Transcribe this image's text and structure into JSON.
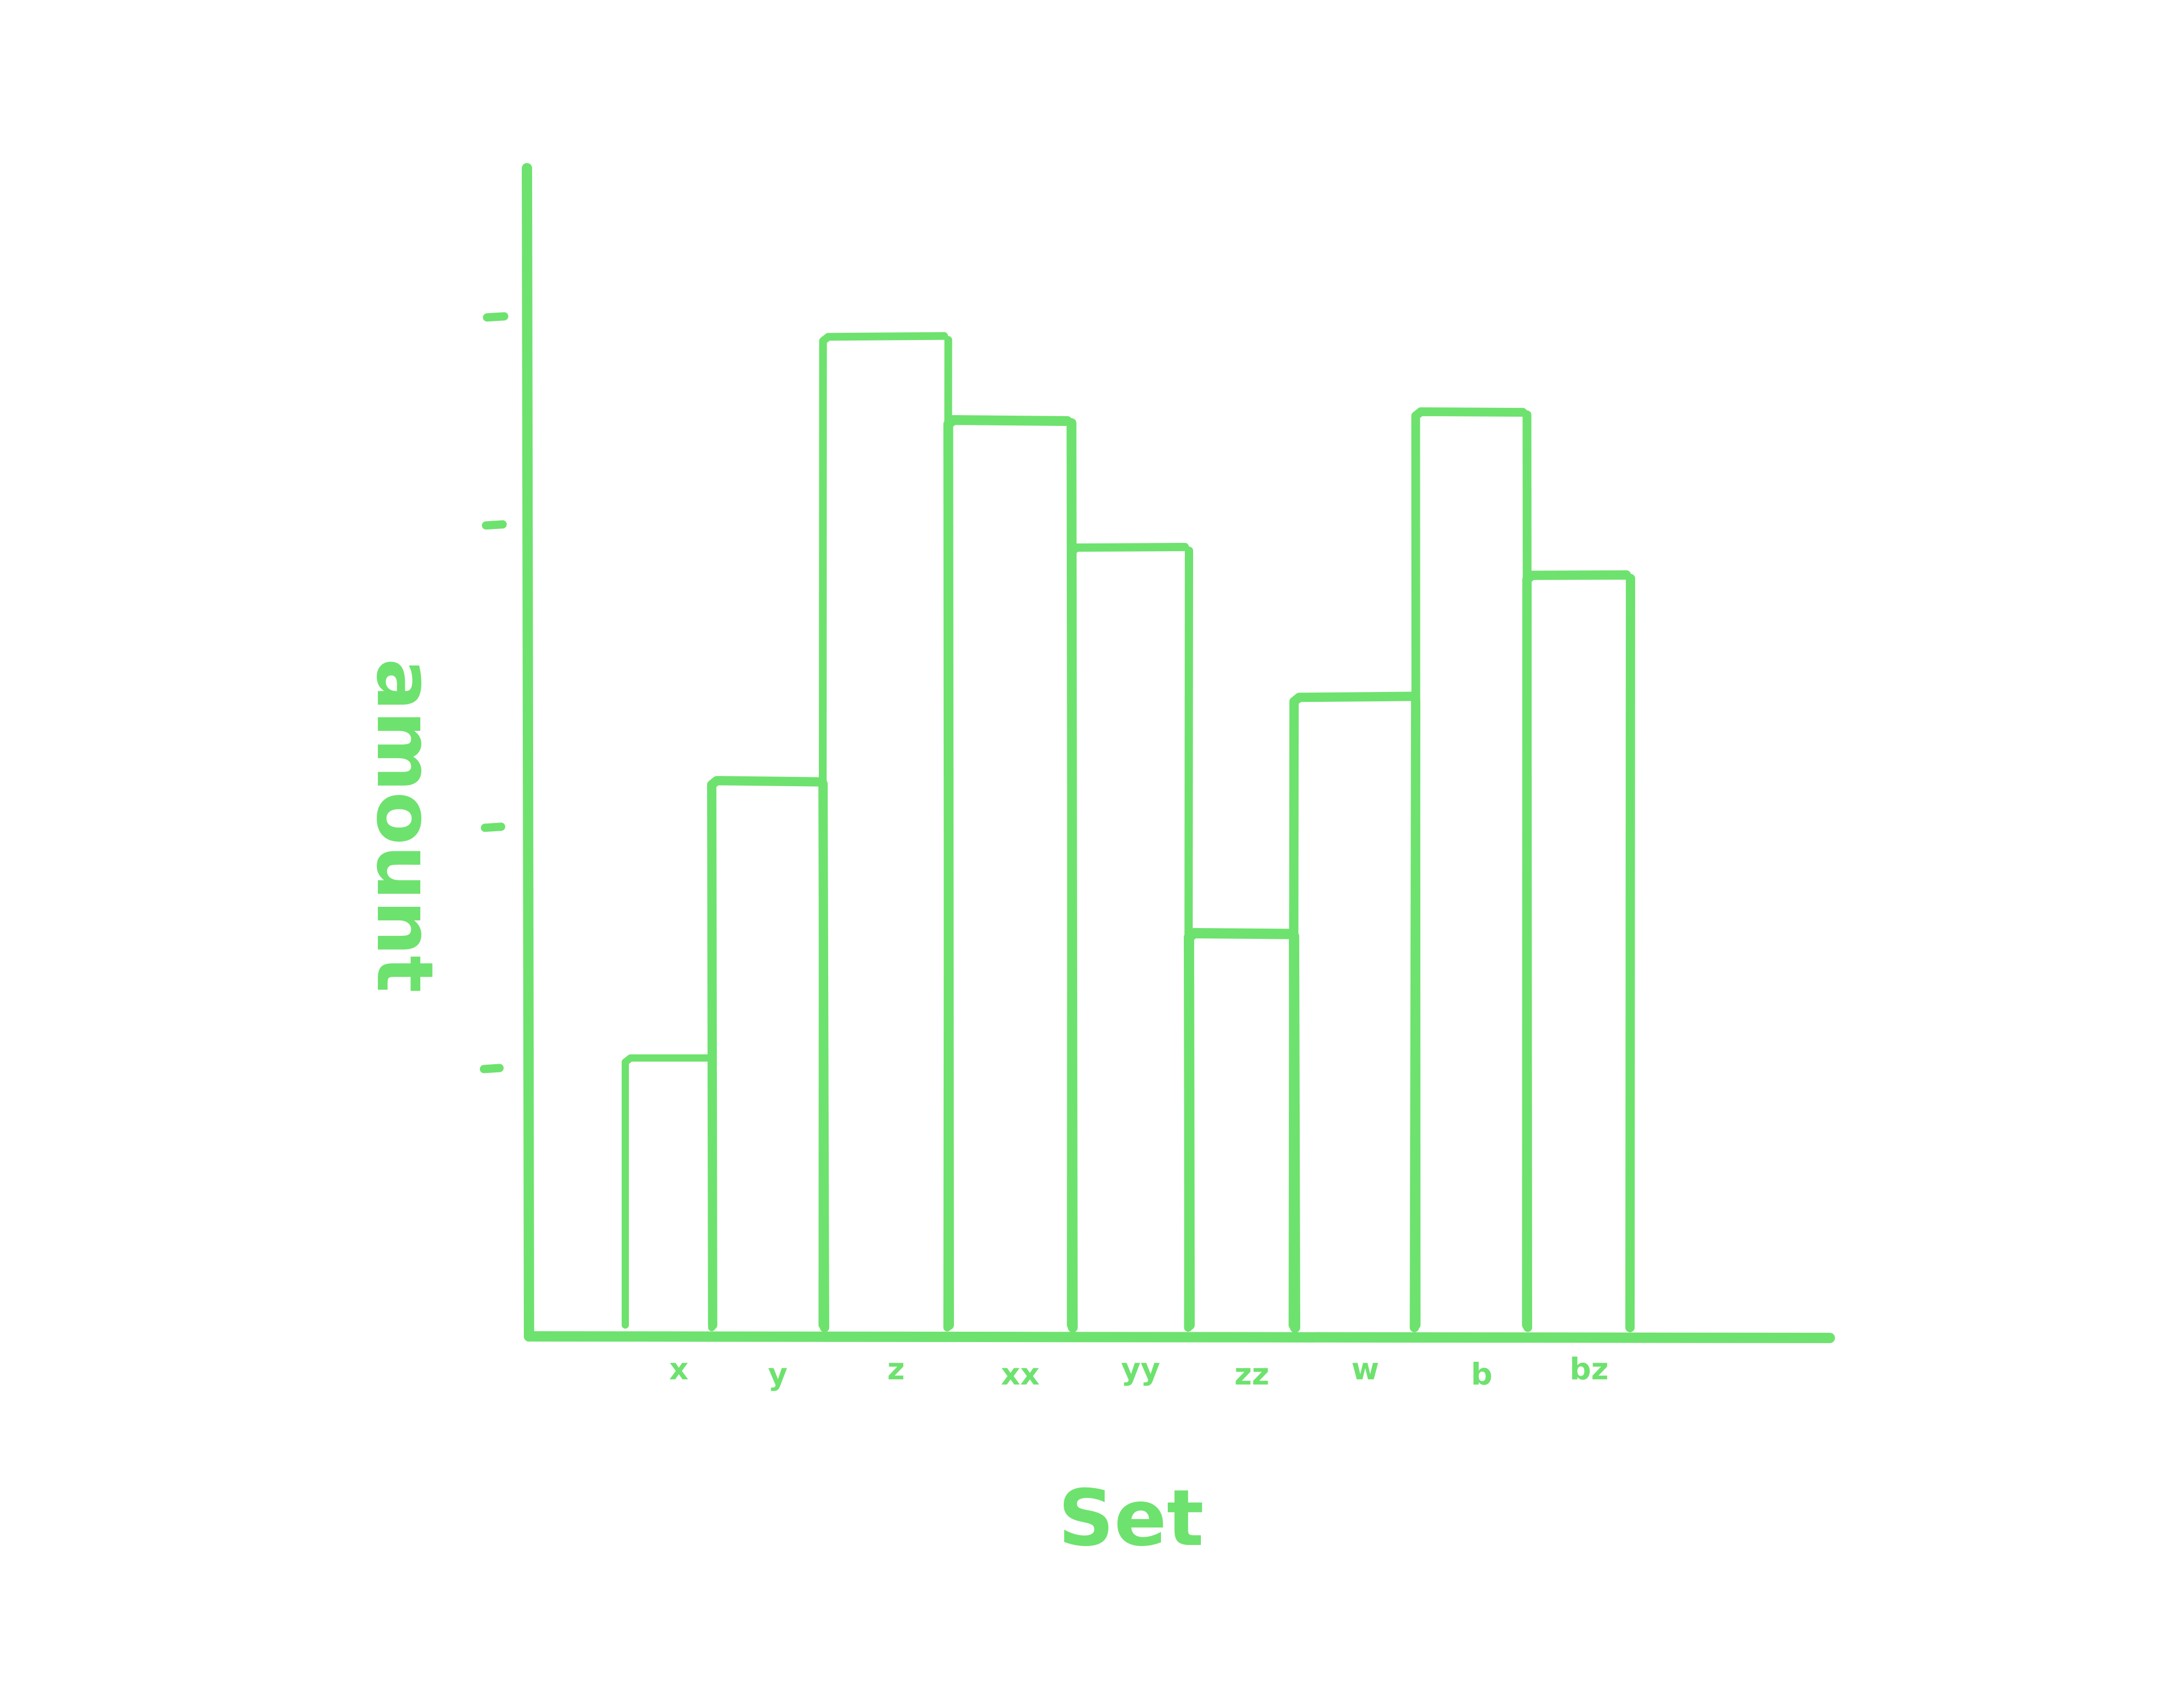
{
  "colors": {
    "accent": "#6ee26e",
    "background": "#ffffff"
  },
  "chart_data": {
    "type": "bar",
    "style": "hand-drawn sketch, outlined bars",
    "categories": [
      "x",
      "y",
      "z",
      "xx",
      "yy",
      "zz",
      "w",
      "b",
      "bz"
    ],
    "values": [
      1.0,
      2.0,
      3.6,
      3.3,
      2.84,
      1.45,
      2.3,
      3.33,
      2.74
    ],
    "xlabel": "Set",
    "ylabel": "amount",
    "ylim": [
      0,
      3.9
    ],
    "y_ticks_labeled": false,
    "grid": false,
    "legend": "none"
  }
}
